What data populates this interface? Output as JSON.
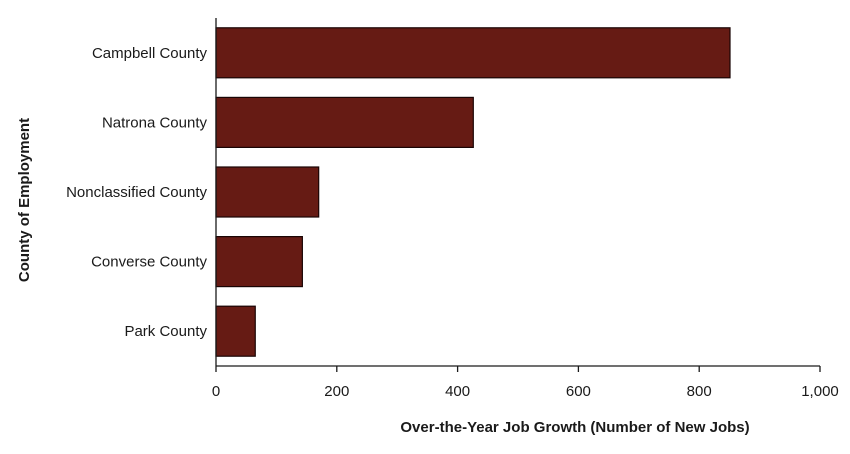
{
  "chart_data": {
    "type": "bar",
    "orientation": "horizontal",
    "categories": [
      "Campbell County",
      "Natrona County",
      "Nonclassified County",
      "Converse County",
      "Park County"
    ],
    "values": [
      851,
      426,
      170,
      143,
      65
    ],
    "xlabel": "Over-the-Year Job Growth (Number of New Jobs)",
    "ylabel": "County of Employment",
    "xlim": [
      0,
      1000
    ],
    "xticks": [
      0,
      200,
      400,
      600,
      800,
      1000
    ],
    "xtick_labels": [
      "0",
      "200",
      "400",
      "600",
      "800",
      "1,000"
    ],
    "grid": false,
    "legend": "none",
    "colors": {
      "bar_fill": "#661B14",
      "bar_stroke": "#1a0505",
      "axis": "#1a1a1a"
    }
  }
}
